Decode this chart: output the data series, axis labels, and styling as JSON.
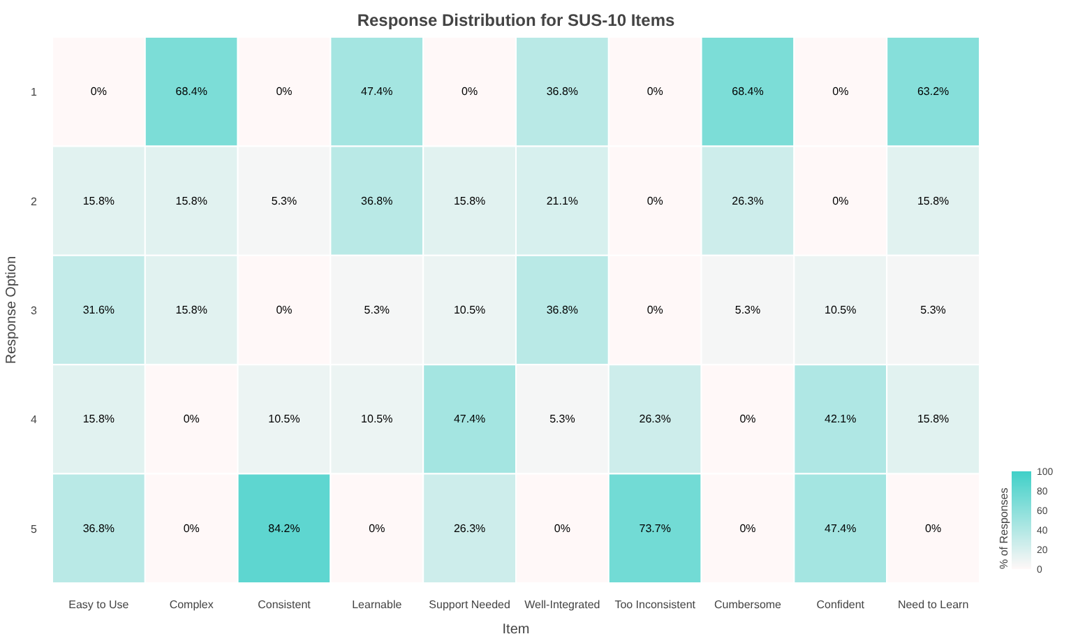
{
  "chart_data": {
    "type": "heatmap",
    "title": "Response Distribution for SUS-10 Items",
    "xlabel": "Item",
    "ylabel": "Response Option",
    "clabel": "% of Responses",
    "categories": [
      "Easy to Use",
      "Complex",
      "Consistent",
      "Learnable",
      "Support Needed",
      "Well-Integrated",
      "Too Inconsistent",
      "Cumbersome",
      "Confident",
      "Need to Learn"
    ],
    "y_categories": [
      "1",
      "2",
      "3",
      "4",
      "5"
    ],
    "cells": [
      [
        0,
        68.4,
        0,
        47.4,
        0,
        36.8,
        0,
        68.4,
        0,
        63.2
      ],
      [
        15.8,
        15.8,
        5.3,
        36.8,
        15.8,
        21.1,
        0,
        26.3,
        0,
        15.8
      ],
      [
        31.6,
        15.8,
        0,
        5.3,
        10.5,
        36.8,
        0,
        5.3,
        10.5,
        5.3
      ],
      [
        15.8,
        0,
        10.5,
        10.5,
        47.4,
        5.3,
        26.3,
        0,
        42.1,
        15.8
      ],
      [
        36.8,
        0,
        84.2,
        0,
        26.3,
        0,
        73.7,
        0,
        47.4,
        0
      ]
    ],
    "cell_labels": [
      [
        "0%",
        "68.4%",
        "0%",
        "47.4%",
        "0%",
        "36.8%",
        "0%",
        "68.4%",
        "0%",
        "63.2%"
      ],
      [
        "15.8%",
        "15.8%",
        "5.3%",
        "36.8%",
        "15.8%",
        "21.1%",
        "0%",
        "26.3%",
        "0%",
        "15.8%"
      ],
      [
        "31.6%",
        "15.8%",
        "0%",
        "5.3%",
        "10.5%",
        "36.8%",
        "0%",
        "5.3%",
        "10.5%",
        "5.3%"
      ],
      [
        "15.8%",
        "0%",
        "10.5%",
        "10.5%",
        "47.4%",
        "5.3%",
        "26.3%",
        "0%",
        "42.1%",
        "15.8%"
      ],
      [
        "36.8%",
        "0%",
        "84.2%",
        "0%",
        "26.3%",
        "0%",
        "73.7%",
        "0%",
        "47.4%",
        "0%"
      ]
    ],
    "colors": [
      "#fff8f8",
      "#40d0c8"
    ],
    "clim": [
      0,
      100
    ],
    "cticks": [
      0,
      20,
      40,
      60,
      80,
      100
    ]
  }
}
